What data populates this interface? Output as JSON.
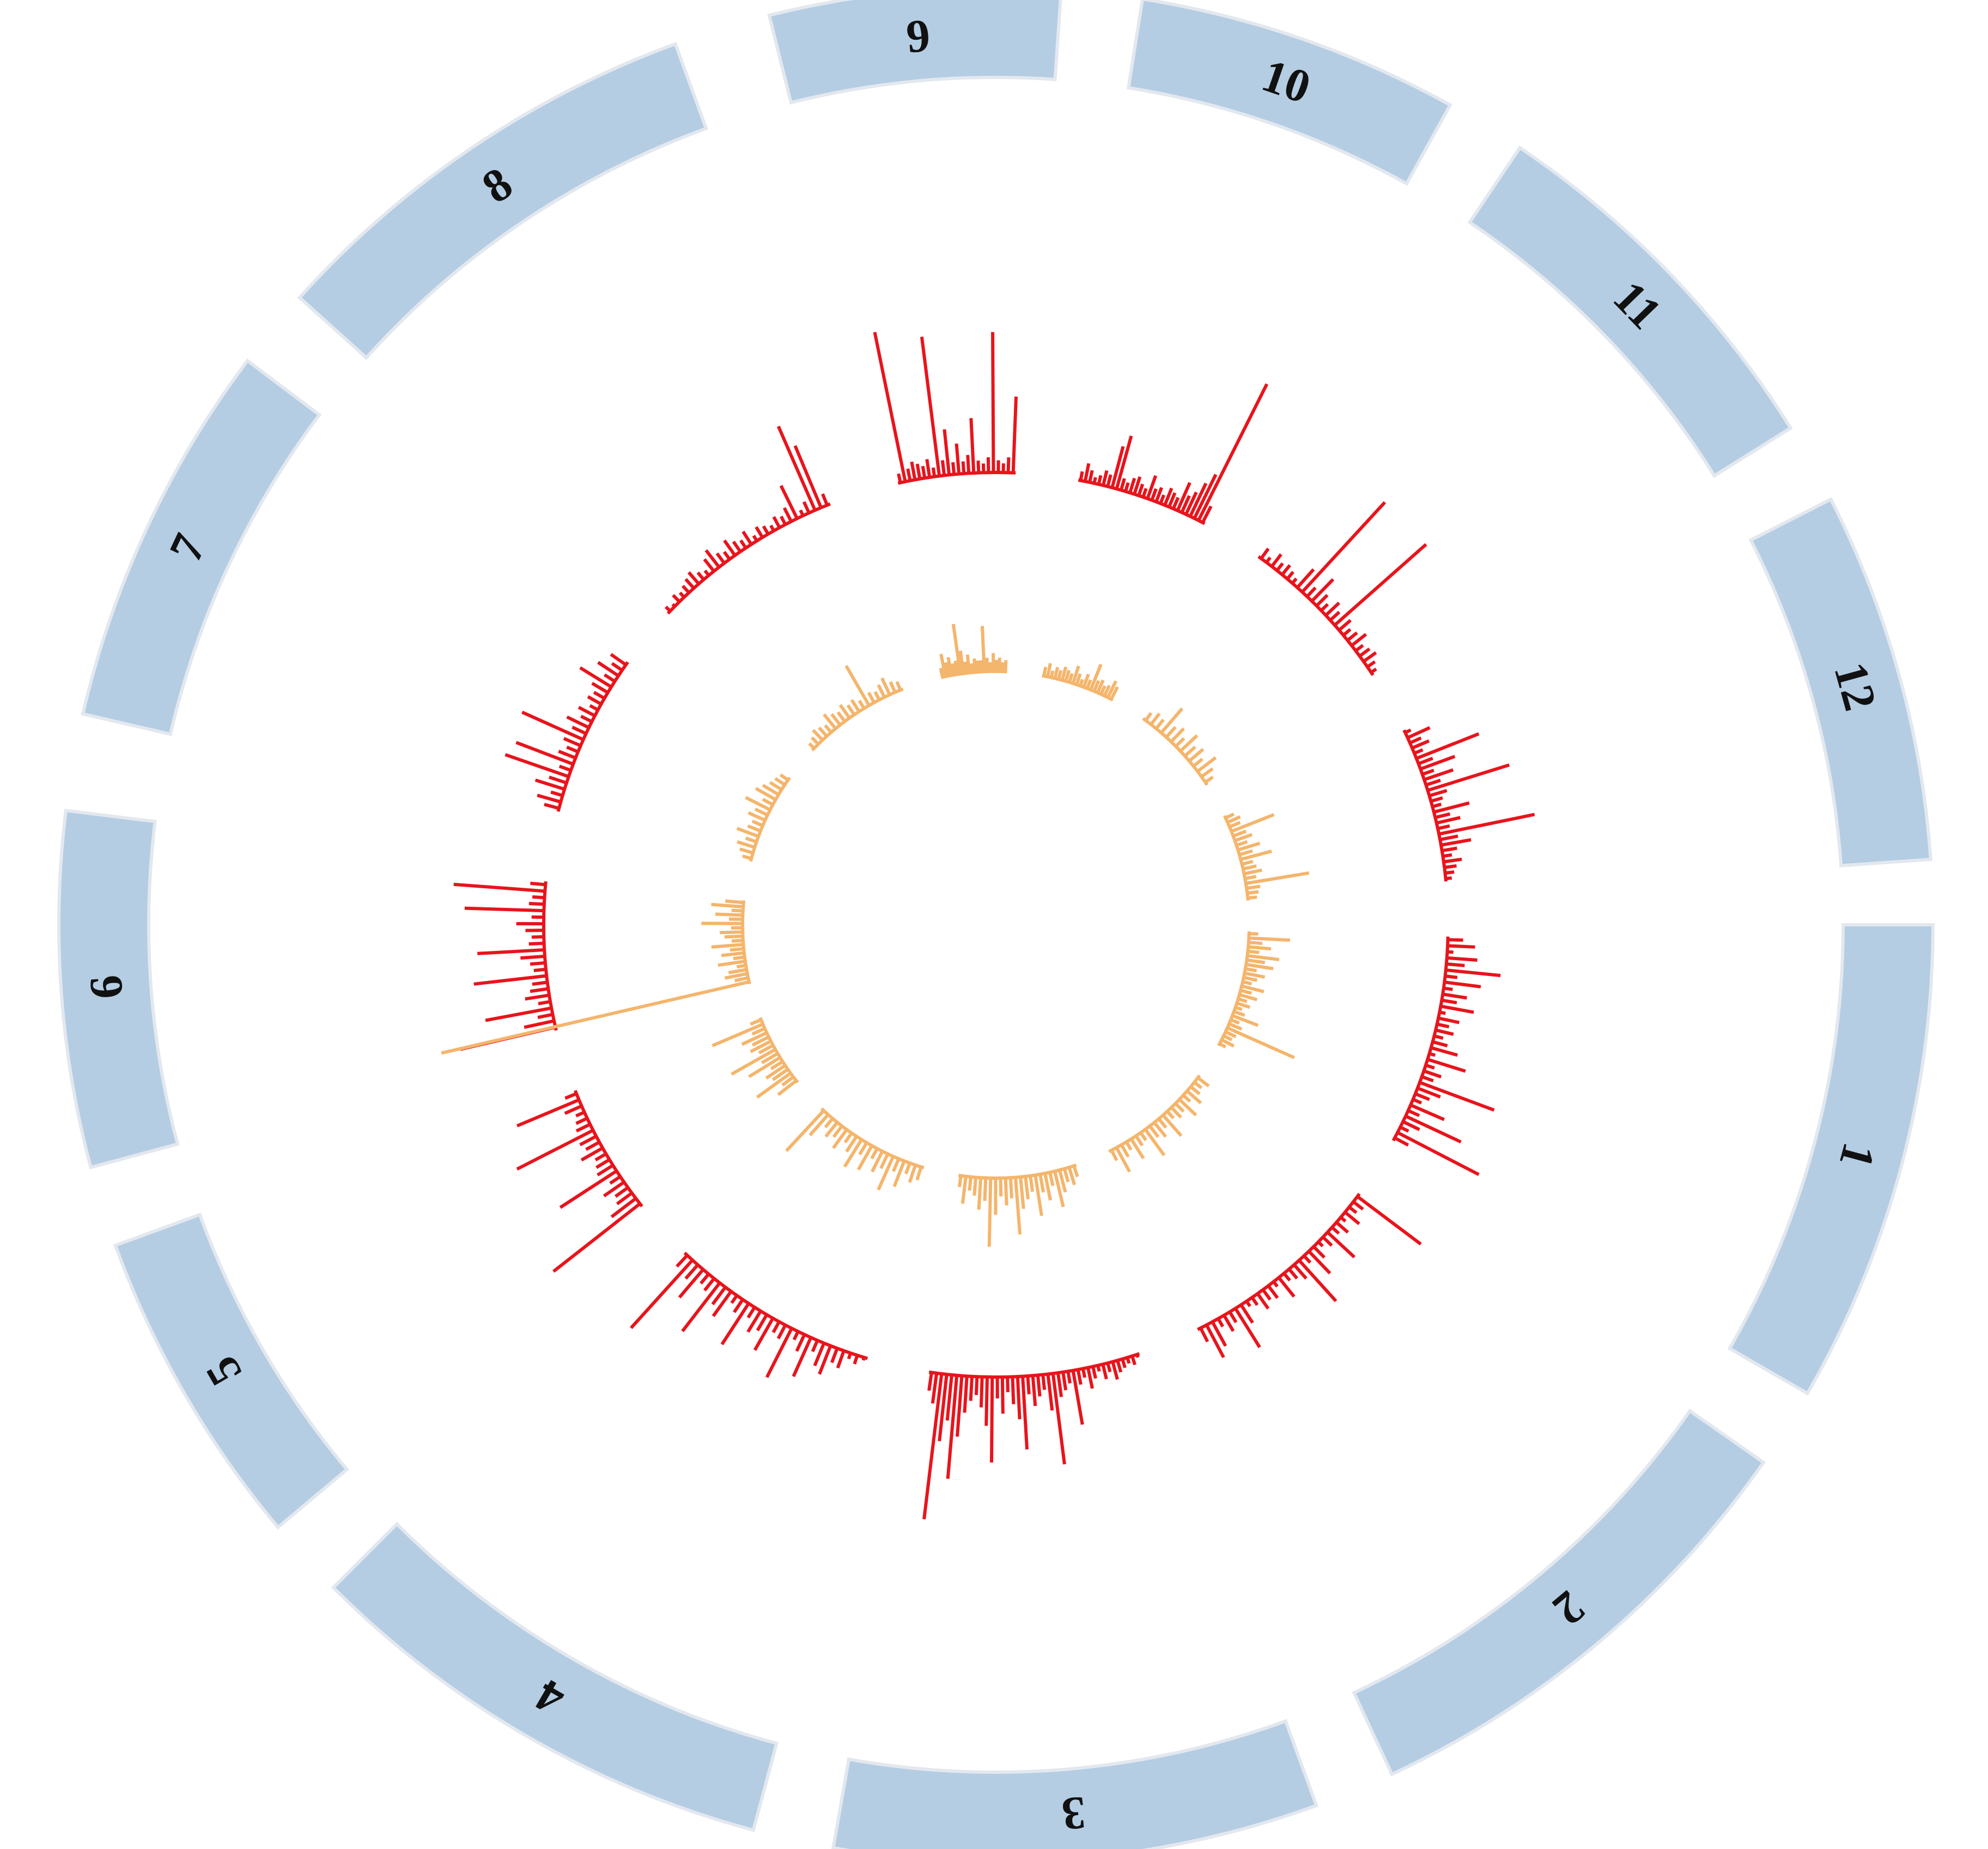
{
  "chart_data": {
    "type": "circos",
    "title": "",
    "colors": {
      "ideogram_fill": "#b4cde3",
      "ideogram_stroke": "#e3e8ef",
      "outer_track": "#e8141c",
      "inner_track": "#f4b56c"
    },
    "chromosomes": [
      {
        "label": "1",
        "start_deg": 90,
        "end_deg": 120
      },
      {
        "label": "2",
        "start_deg": 125,
        "end_deg": 155
      },
      {
        "label": "3",
        "start_deg": 160,
        "end_deg": 190
      },
      {
        "label": "4",
        "start_deg": 195,
        "end_deg": 225
      },
      {
        "label": "5",
        "start_deg": 230,
        "end_deg": 250
      },
      {
        "label": "6",
        "start_deg": 255,
        "end_deg": 277
      },
      {
        "label": "7",
        "start_deg": 283,
        "end_deg": 307
      },
      {
        "label": "8",
        "start_deg": 312,
        "end_deg": 340
      },
      {
        "label": "9",
        "start_deg": 346,
        "end_deg": 4
      },
      {
        "label": "10",
        "start_deg": 9,
        "end_deg": 29
      },
      {
        "label": "11",
        "start_deg": 34,
        "end_deg": 58
      },
      {
        "label": "12",
        "start_deg": 63,
        "end_deg": 86
      }
    ],
    "tracks": [
      {
        "name": "",
        "color_key": "outer_track",
        "direction": "outward",
        "segments": [
          {
            "chrom": "1",
            "values": [
              0.05,
              0.09,
              0.02,
              0.1,
              0.06,
              0.18,
              0.04,
              0.12,
              0.03,
              0.08,
              0.05,
              0.11,
              0.02,
              0.07,
              0.04,
              0.06,
              0.03,
              0.05,
              0.09,
              0.02,
              0.13,
              0.03,
              0.06,
              0.04,
              0.26,
              0.08,
              0.05,
              0.03,
              0.12,
              0.04,
              0.2,
              0.06,
              0.03,
              0.3,
              0.05
            ]
          },
          {
            "chrom": "2",
            "values": [
              0.26,
              0.04,
              0.03,
              0.06,
              0.02,
              0.05,
              0.03,
              0.12,
              0.04,
              0.02,
              0.05,
              0.1,
              0.03,
              0.18,
              0.06,
              0.04,
              0.03,
              0.08,
              0.02,
              0.05,
              0.04,
              0.06,
              0.03,
              0.02,
              0.07,
              0.15,
              0.04,
              0.06,
              0.03,
              0.09,
              0.12,
              0.05
            ]
          },
          {
            "chrom": "3",
            "values": [
              0.01,
              0.03,
              0.02,
              0.03,
              0.04,
              0.06,
              0.03,
              0.05,
              0.02,
              0.04,
              0.07,
              0.03,
              0.05,
              0.18,
              0.04,
              0.06,
              0.08,
              0.3,
              0.12,
              0.05,
              0.07,
              0.1,
              0.06,
              0.24,
              0.14,
              0.09,
              0.05,
              0.12,
              0.07,
              0.28,
              0.16,
              0.1,
              0.06,
              0.08,
              0.12,
              0.2,
              0.34,
              0.15,
              0.22,
              0.48,
              0.1,
              0.06
            ]
          },
          {
            "chrom": "4",
            "values": [
              0.01,
              0.03,
              0.02,
              0.06,
              0.05,
              0.1,
              0.08,
              0.04,
              0.14,
              0.06,
              0.03,
              0.18,
              0.05,
              0.04,
              0.12,
              0.06,
              0.08,
              0.04,
              0.16,
              0.05,
              0.03,
              0.1,
              0.07,
              0.2,
              0.05,
              0.04,
              0.12,
              0.06,
              0.3,
              0.05
            ]
          },
          {
            "chrom": "5",
            "values": [
              0.36,
              0.1,
              0.06,
              0.05,
              0.08,
              0.04,
              0.22,
              0.06,
              0.05,
              0.04,
              0.08,
              0.05,
              0.06,
              0.28,
              0.05,
              0.04,
              0.03,
              0.06,
              0.22,
              0.04
            ]
          },
          {
            "chrom": "6",
            "values": [
              0.32,
              0.1,
              0.05,
              0.22,
              0.04,
              0.08,
              0.06,
              0.05,
              0.24,
              0.04,
              0.05,
              0.08,
              0.22,
              0.05,
              0.04,
              0.06,
              0.09,
              0.04,
              0.26,
              0.05,
              0.04,
              0.3,
              0.05
            ]
          },
          {
            "chrom": "7",
            "values": [
              0.05,
              0.08,
              0.04,
              0.1,
              0.06,
              0.22,
              0.04,
              0.2,
              0.06,
              0.04,
              0.06,
              0.22,
              0.05,
              0.08,
              0.04,
              0.06,
              0.03,
              0.05,
              0.04,
              0.06,
              0.12,
              0.04,
              0.08,
              0.04,
              0.06
            ]
          },
          {
            "chrom": "8",
            "values": [
              0.02,
              0.01,
              0.03,
              0.02,
              0.03,
              0.04,
              0.05,
              0.03,
              0.02,
              0.05,
              0.07,
              0.04,
              0.03,
              0.06,
              0.04,
              0.03,
              0.05,
              0.02,
              0.04,
              0.03,
              0.02,
              0.04,
              0.03,
              0.05,
              0.12,
              0.02,
              0.04,
              0.3,
              0.22,
              0.04
            ]
          },
          {
            "chrom": "9",
            "values": [
              0.03,
              0.5,
              0.04,
              0.06,
              0.05,
              0.04,
              0.06,
              0.03,
              0.46,
              0.05,
              0.15,
              0.04,
              0.1,
              0.04,
              0.06,
              0.18,
              0.04,
              0.03,
              0.05,
              0.46,
              0.04,
              0.03,
              0.05,
              0.25
            ]
          },
          {
            "chrom": "10",
            "values": [
              0.03,
              0.06,
              0.04,
              0.02,
              0.03,
              0.05,
              0.04,
              0.14,
              0.18,
              0.04,
              0.03,
              0.05,
              0.06,
              0.04,
              0.03,
              0.08,
              0.04,
              0.05,
              0.03,
              0.06,
              0.05,
              0.04,
              0.1,
              0.06,
              0.08,
              0.12,
              0.16,
              0.5,
              0.06
            ]
          },
          {
            "chrom": "11",
            "values": [
              0.04,
              0.02,
              0.05,
              0.03,
              0.04,
              0.03,
              0.02,
              0.08,
              0.4,
              0.04,
              0.1,
              0.05,
              0.03,
              0.06,
              0.04,
              0.4,
              0.05,
              0.03,
              0.04,
              0.06,
              0.03,
              0.04,
              0.05,
              0.03,
              0.02
            ]
          },
          {
            "chrom": "12",
            "values": [
              0.02,
              0.08,
              0.04,
              0.06,
              0.03,
              0.22,
              0.05,
              0.12,
              0.04,
              0.1,
              0.05,
              0.28,
              0.06,
              0.04,
              0.03,
              0.12,
              0.05,
              0.08,
              0.04,
              0.32,
              0.06,
              0.1,
              0.05,
              0.03,
              0.06,
              0.04,
              0.03,
              0.02
            ]
          }
        ]
      },
      {
        "name": "",
        "color_key": "inner_track",
        "direction": "outward",
        "segments": [
          {
            "chrom": "1",
            "values": [
              0.04,
              0.18,
              0.06,
              0.1,
              0.05,
              0.14,
              0.08,
              0.12,
              0.05,
              0.09,
              0.06,
              0.04,
              0.1,
              0.05,
              0.08,
              0.04,
              0.06,
              0.03,
              0.05,
              0.12,
              0.04,
              0.06,
              0.32,
              0.05,
              0.04,
              0.06,
              0.03
            ]
          },
          {
            "chrom": "2",
            "values": [
              0.06,
              0.04,
              0.05,
              0.08,
              0.04,
              0.1,
              0.05,
              0.06,
              0.04,
              0.12,
              0.05,
              0.08,
              0.06,
              0.14,
              0.04,
              0.05,
              0.1,
              0.04,
              0.06,
              0.12,
              0.05
            ]
          },
          {
            "chrom": "3",
            "values": [
              0.05,
              0.08,
              0.06,
              0.1,
              0.16,
              0.06,
              0.12,
              0.08,
              0.18,
              0.07,
              0.1,
              0.14,
              0.25,
              0.09,
              0.12,
              0.08,
              0.16,
              0.3,
              0.1,
              0.14,
              0.08,
              0.06,
              0.12,
              0.05
            ]
          },
          {
            "chrom": "4",
            "values": [
              0.06,
              0.08,
              0.05,
              0.12,
              0.06,
              0.16,
              0.07,
              0.1,
              0.05,
              0.12,
              0.06,
              0.14,
              0.08,
              0.05,
              0.1,
              0.06,
              0.08,
              0.05,
              0.12,
              0.24
            ]
          },
          {
            "chrom": "5",
            "values": [
              0.1,
              0.06,
              0.18,
              0.08,
              0.1,
              0.06,
              0.16,
              0.08,
              0.22,
              0.07,
              0.1,
              0.08,
              0.12,
              0.06,
              0.24,
              0.05
            ]
          },
          {
            "chrom": "6",
            "values": [
              1.38,
              0.06,
              0.1,
              0.08,
              0.04,
              0.12,
              0.05,
              0.1,
              0.06,
              0.14,
              0.05,
              0.08,
              0.1,
              0.05,
              0.18,
              0.06,
              0.12,
              0.05,
              0.14,
              0.08
            ]
          },
          {
            "chrom": "7",
            "values": [
              0.04,
              0.06,
              0.08,
              0.05,
              0.1,
              0.06,
              0.05,
              0.08,
              0.06,
              0.12,
              0.05,
              0.1,
              0.08,
              0.06,
              0.05,
              0.04
            ]
          },
          {
            "chrom": "8",
            "values": [
              0.03,
              0.04,
              0.06,
              0.05,
              0.04,
              0.08,
              0.06,
              0.05,
              0.07,
              0.05,
              0.06,
              0.04,
              0.2,
              0.05,
              0.04,
              0.06,
              0.08,
              0.05,
              0.04
            ]
          },
          {
            "chrom": "9",
            "values": [
              0.04,
              0.1,
              0.06,
              0.08,
              0.05,
              0.06,
              0.22,
              0.1,
              0.05,
              0.08,
              0.04,
              0.06,
              0.05,
              0.05,
              0.2,
              0.06,
              0.04,
              0.08,
              0.05,
              0.06,
              0.04,
              0.05
            ]
          },
          {
            "chrom": "10",
            "values": [
              0.04,
              0.06,
              0.03,
              0.05,
              0.04,
              0.06,
              0.05,
              0.04,
              0.08,
              0.05,
              0.03,
              0.06,
              0.04,
              0.12,
              0.05,
              0.06,
              0.04,
              0.05,
              0.08,
              0.06
            ]
          },
          {
            "chrom": "11",
            "values": [
              0.04,
              0.06,
              0.05,
              0.14,
              0.06,
              0.08,
              0.05,
              0.1,
              0.06,
              0.08,
              0.05,
              0.1,
              0.06,
              0.04
            ]
          },
          {
            "chrom": "12",
            "values": [
              0.04,
              0.06,
              0.05,
              0.2,
              0.06,
              0.08,
              0.05,
              0.1,
              0.06,
              0.14,
              0.05,
              0.06,
              0.08,
              0.05,
              0.28,
              0.06,
              0.05,
              0.04
            ]
          }
        ]
      }
    ]
  }
}
